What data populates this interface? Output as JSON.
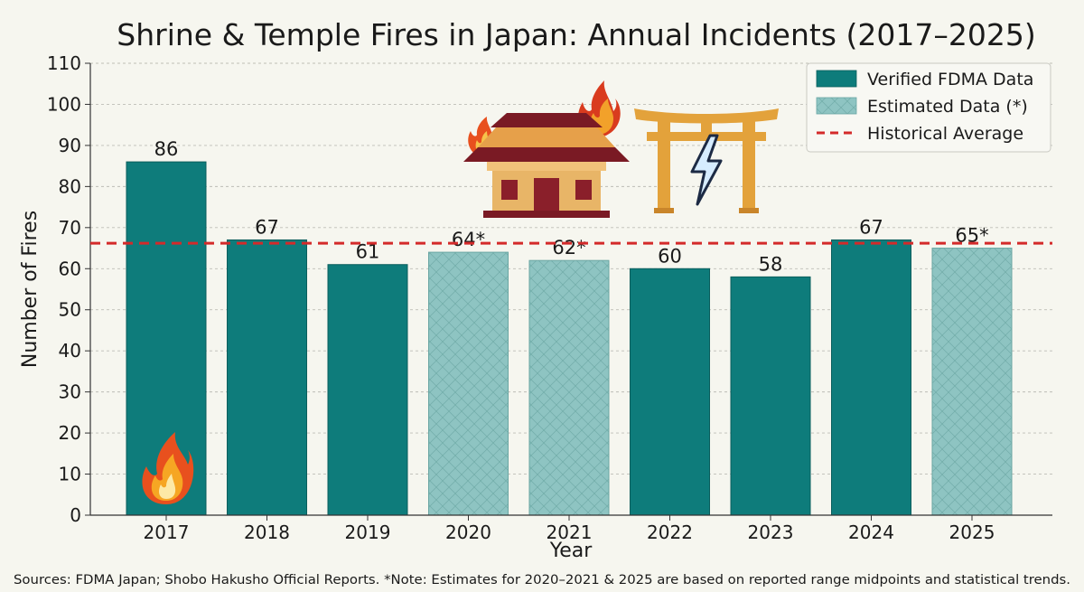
{
  "chart_data": {
    "type": "bar",
    "title": "Shrine & Temple Fires in Japan: Annual Incidents (2017–2025)",
    "xlabel": "Year",
    "ylabel": "Number of Fires",
    "ylim": [
      0,
      110
    ],
    "yticks": [
      0,
      10,
      20,
      30,
      40,
      50,
      60,
      70,
      80,
      90,
      100,
      110
    ],
    "categories": [
      "2017",
      "2018",
      "2019",
      "2020",
      "2021",
      "2022",
      "2023",
      "2024",
      "2025"
    ],
    "values": [
      86,
      67,
      61,
      64,
      62,
      60,
      58,
      67,
      65
    ],
    "data_labels": [
      "86",
      "67",
      "61",
      "64*",
      "62*",
      "60",
      "58",
      "67",
      "65*"
    ],
    "estimated": [
      false,
      false,
      false,
      true,
      true,
      false,
      false,
      false,
      true
    ],
    "historical_average": 66.2,
    "grid": true,
    "legend": {
      "placement": "top-right",
      "entries": [
        "Verified FDMA Data",
        "Estimated Data (*)",
        "Historical Average"
      ]
    },
    "source_note": "Sources: FDMA Japan; Shobo Hakusho Official Reports. *Note: Estimates for 2020–2021 & 2025 are based on reported range midpoints and statistical trends.",
    "colors": {
      "verified": "#0e7c7b",
      "estimated": "#8ec4c2",
      "average": "#d42a2a",
      "grid": "#bdbdb6"
    },
    "icons": [
      "flame-icon",
      "burning-temple-icon",
      "torii-lightning-icon"
    ]
  }
}
